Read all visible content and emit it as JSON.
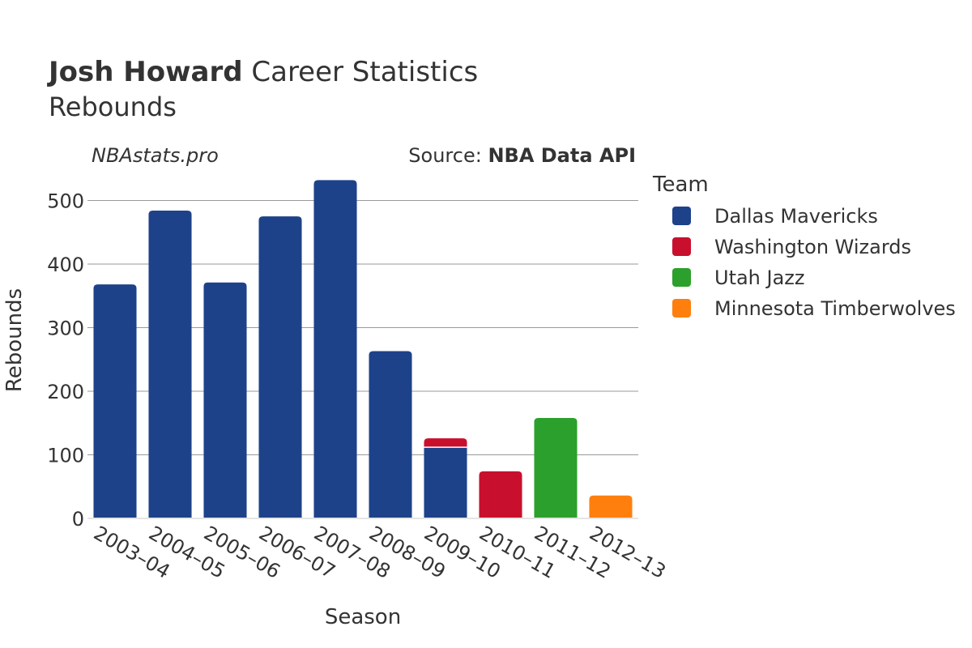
{
  "title": {
    "player": "Josh Howard",
    "rest": "Career Statistics",
    "subtitle": "Rebounds"
  },
  "watermark": "NBAstats.pro",
  "source": {
    "prefix": "Source: ",
    "name": "NBA Data API"
  },
  "legend_title": "Team",
  "colors": {
    "Dallas Mavericks": "#1d428a",
    "Washington Wizards": "#c8102e",
    "Utah Jazz": "#2ca02c",
    "Minnesota Timberwolves": "#ff7f0e",
    "grid": "#999999",
    "text": "#333333"
  },
  "chart_data": {
    "type": "bar",
    "stacked": true,
    "title": "Josh Howard Career Statistics",
    "subtitle": "Rebounds",
    "xlabel": "Season",
    "ylabel": "Rebounds",
    "ylim": [
      0,
      550
    ],
    "yticks": [
      0,
      100,
      200,
      300,
      400,
      500
    ],
    "grid": true,
    "legend_position": "right",
    "categories": [
      "2003–04",
      "2004–05",
      "2005–06",
      "2006–07",
      "2007–08",
      "2008–09",
      "2009–10",
      "2010–11",
      "2011–12",
      "2012–13"
    ],
    "series": [
      {
        "name": "Dallas Mavericks",
        "values": [
          368,
          484,
          371,
          475,
          532,
          263,
          112,
          0,
          0,
          0
        ]
      },
      {
        "name": "Washington Wizards",
        "values": [
          0,
          0,
          0,
          0,
          0,
          0,
          14,
          74,
          0,
          0
        ]
      },
      {
        "name": "Utah Jazz",
        "values": [
          0,
          0,
          0,
          0,
          0,
          0,
          0,
          0,
          158,
          0
        ]
      },
      {
        "name": "Minnesota Timberwolves",
        "values": [
          0,
          0,
          0,
          0,
          0,
          0,
          0,
          0,
          0,
          36
        ]
      }
    ]
  }
}
